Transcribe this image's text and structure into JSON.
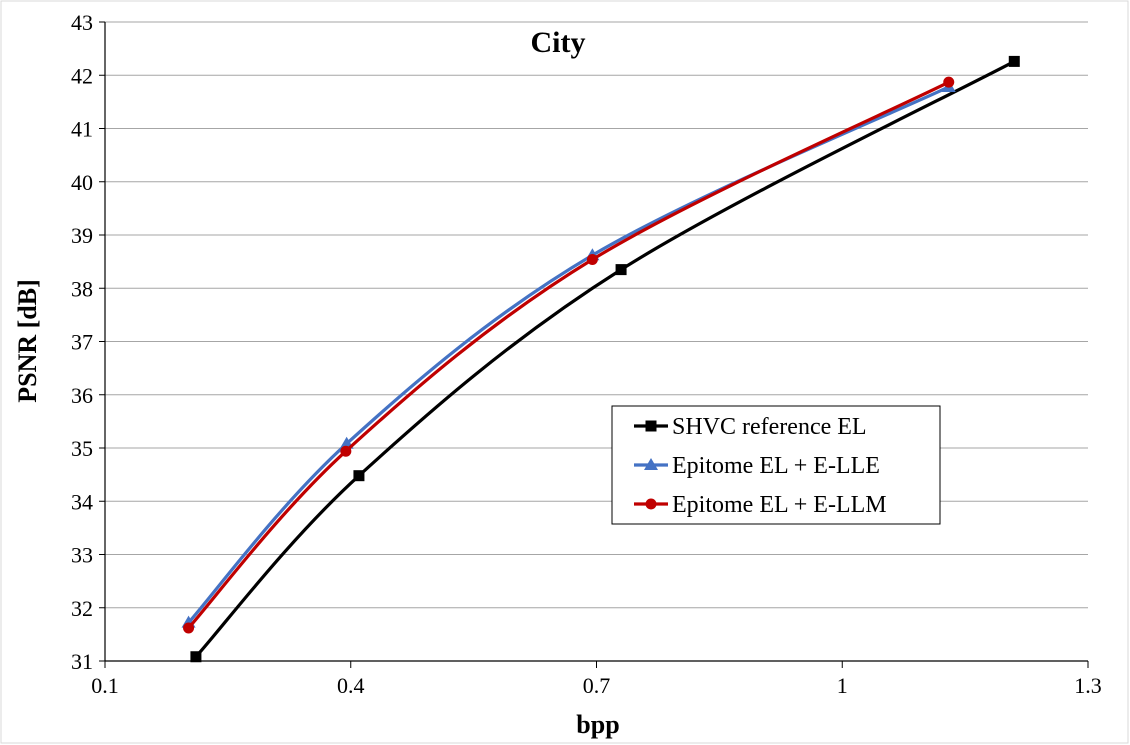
{
  "chart_data": {
    "type": "line",
    "title": "City",
    "xlabel": "bpp",
    "ylabel": "PSNR [dB]",
    "xlim": [
      0.1,
      1.3
    ],
    "ylim": [
      31,
      43
    ],
    "xticks": [
      0.1,
      0.4,
      0.7,
      1.0,
      1.3
    ],
    "xtick_labels": [
      "0.1",
      "0.4",
      "0.7",
      "1",
      "1.3"
    ],
    "yticks": [
      31,
      32,
      33,
      34,
      35,
      36,
      37,
      38,
      39,
      40,
      41,
      42,
      43
    ],
    "ytick_labels": [
      "31",
      "32",
      "33",
      "34",
      "35",
      "36",
      "37",
      "38",
      "39",
      "40",
      "41",
      "42",
      "43"
    ],
    "grid": "horizontal",
    "legend_position": "lower-right",
    "series": [
      {
        "name": "SHVC reference EL",
        "color": "#000000",
        "marker": "square",
        "x": [
          0.211,
          0.41,
          0.73,
          1.21
        ],
        "y": [
          31.08,
          34.48,
          38.35,
          42.26
        ]
      },
      {
        "name": "Epitome EL + E-LLE",
        "color": "#4472C4",
        "marker": "triangle",
        "x": [
          0.202,
          0.395,
          0.695,
          1.13
        ],
        "y": [
          31.72,
          35.08,
          38.62,
          41.78
        ]
      },
      {
        "name": "Epitome EL + E-LLM",
        "color": "#C00000",
        "marker": "circle",
        "x": [
          0.202,
          0.394,
          0.695,
          1.13
        ],
        "y": [
          31.62,
          34.94,
          38.54,
          41.87
        ]
      }
    ]
  }
}
